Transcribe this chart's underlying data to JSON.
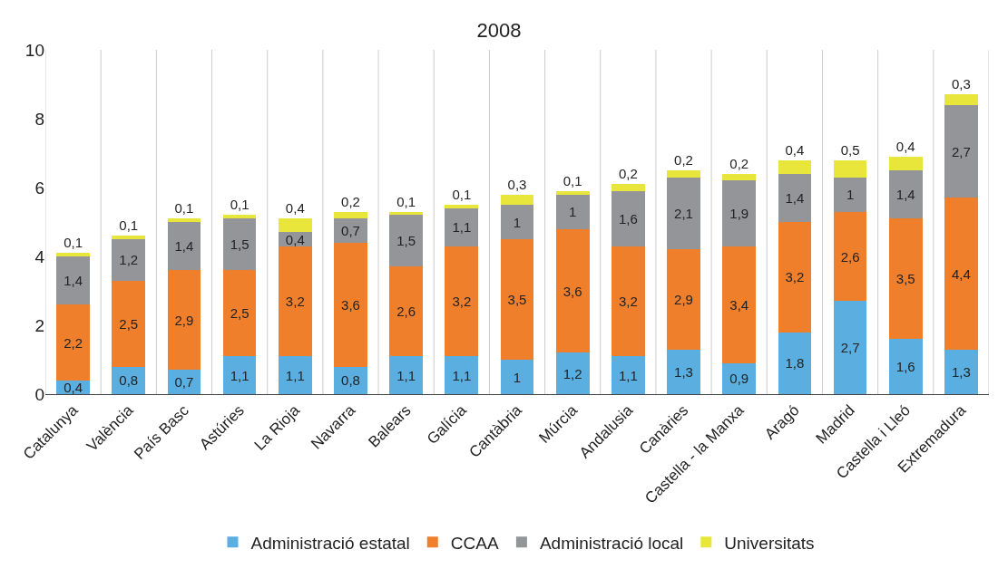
{
  "chart_data": {
    "type": "bar",
    "title": "2008",
    "stacked": true,
    "categories": [
      "Catalunya",
      "València",
      "País Basc",
      "Astúries",
      "La Rioja",
      "Navarra",
      "Balears",
      "Galícia",
      "Cantàbria",
      "Múrcia",
      "Andalusia",
      "Canàries",
      "Castella - la Manxa",
      "Aragó",
      "Madrid",
      "Castella i Lleó",
      "Extremadura"
    ],
    "series": [
      {
        "name": "Administració estatal",
        "color": "#5aaee0",
        "values": [
          0.4,
          0.8,
          0.7,
          1.1,
          1.1,
          0.8,
          1.1,
          1.1,
          1,
          1.2,
          1.1,
          1.3,
          0.9,
          1.8,
          2.7,
          1.6,
          1.3
        ],
        "value_labels": [
          "0,4",
          "0,8",
          "0,7",
          "1,1",
          "1,1",
          "0,8",
          "1,1",
          "1,1",
          "1",
          "1,2",
          "1,1",
          "1,3",
          "0,9",
          "1,8",
          "2,7",
          "1,6",
          "1,3"
        ]
      },
      {
        "name": "CCAA",
        "color": "#f07f2c",
        "values": [
          2.2,
          2.5,
          2.9,
          2.5,
          3.2,
          3.6,
          2.6,
          3.2,
          3.5,
          3.6,
          3.2,
          2.9,
          3.4,
          3.2,
          2.6,
          3.5,
          4.4
        ],
        "value_labels": [
          "2,2",
          "2,5",
          "2,9",
          "2,5",
          "3,2",
          "3,6",
          "2,6",
          "3,2",
          "3,5",
          "3,6",
          "3,2",
          "2,9",
          "3,4",
          "3,2",
          "2,6",
          "3,5",
          "4,4"
        ]
      },
      {
        "name": "Administració local",
        "color": "#939598",
        "values": [
          1.4,
          1.2,
          1.4,
          1.5,
          0.4,
          0.7,
          1.5,
          1.1,
          1,
          1,
          1.6,
          2.1,
          1.9,
          1.4,
          1,
          1.4,
          2.7
        ],
        "value_labels": [
          "1,4",
          "1,2",
          "1,4",
          "1,5",
          "0,4",
          "0,7",
          "1,5",
          "1,1",
          "1",
          "1",
          "1,6",
          "2,1",
          "1,9",
          "1,4",
          "1",
          "1,4",
          "2,7"
        ]
      },
      {
        "name": "Universitats",
        "color": "#e8e63a",
        "values": [
          0.1,
          0.1,
          0.1,
          0.1,
          0.4,
          0.2,
          0.1,
          0.1,
          0.3,
          0.1,
          0.2,
          0.2,
          0.2,
          0.4,
          0.5,
          0.4,
          0.3
        ],
        "value_labels": [
          "0,1",
          "0,1",
          "0,1",
          "0,1",
          "0,4",
          "0,2",
          "0,1",
          "0,1",
          "0,3",
          "0,1",
          "0,2",
          "0,2",
          "0,2",
          "0,4",
          "0,5",
          "0,4",
          "0,3"
        ]
      }
    ],
    "ylim": [
      0,
      10
    ],
    "yticks": [
      0,
      2,
      4,
      6,
      8,
      10
    ],
    "grid": "x",
    "legend": "bottom"
  }
}
